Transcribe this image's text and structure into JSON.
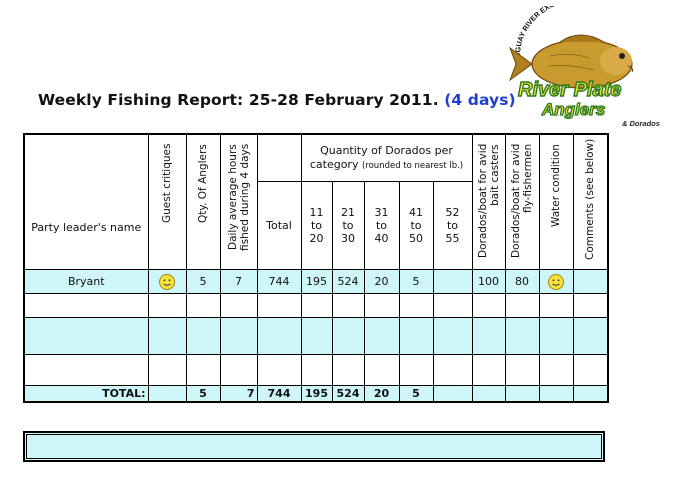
{
  "report": {
    "title_main": "Weekly Fishing Report: 25-28 February 2011.",
    "title_days": "(4 days)"
  },
  "logo": {
    "arc_text": "URUGUAY RIVER EXCLUSIVE TAILWATERS",
    "line1": "River Plate",
    "line2": "Anglers",
    "tagline": "& Dorados"
  },
  "headers": {
    "leader": "Party leader's name",
    "guest_critiques": "Guest critiques",
    "qty_anglers": "Qty. Of Anglers",
    "daily_hours_1": "Daily average hours",
    "daily_hours_2": "fished during 4 days",
    "total": "Total",
    "qty_dorados": "Quantity of Dorados per",
    "qty_dorados_2": "category",
    "qty_dorados_note": "(rounded to nearest lb.)",
    "cat_11_20": "11 to 20",
    "cat_21_30": "21 to 30",
    "cat_31_40": "31 to 40",
    "cat_41_50": "41 to 50",
    "cat_52_55": "52 to 55",
    "bait_1": "Dorados/boat for avid",
    "bait_2": "bait casters",
    "fly_1": "Dorados/boat for avid",
    "fly_2": "fly-fishermen",
    "water": "Water condition",
    "comments": "Comments (see below)"
  },
  "rows": [
    {
      "leader": "Bryant",
      "guest_icon": "smiley-icon",
      "anglers": "5",
      "hours": "7",
      "total": "744",
      "c11": "195",
      "c21": "524",
      "c31": "20",
      "c41": "5",
      "c52": "",
      "bait": "100",
      "fly": "80",
      "water_icon": "smiley-icon",
      "comments": ""
    }
  ],
  "totals": {
    "label": "TOTAL:",
    "anglers": "5",
    "hours": "7",
    "total": "744",
    "c11": "195",
    "c21": "524",
    "c31": "20",
    "c41": "5"
  },
  "colors": {
    "row_fill": "#cef6f8",
    "title_days": "#1f3fd4",
    "smiley": "#f5e23c"
  }
}
